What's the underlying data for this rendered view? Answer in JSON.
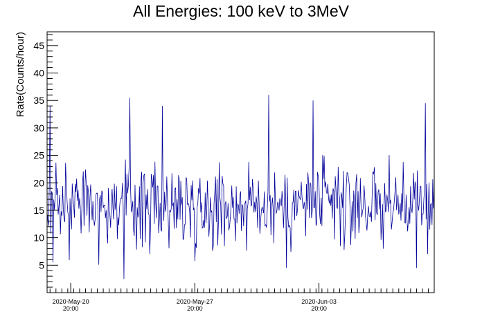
{
  "chart_data": {
    "type": "line",
    "title": "All Energies:  100 keV to 3MeV",
    "xlabel": "",
    "ylabel": "Rate(Counts/hour)",
    "ylim": [
      0,
      47.5
    ],
    "y_ticks": [
      5,
      10,
      15,
      20,
      25,
      30,
      35,
      40,
      45
    ],
    "x_ticks": [
      {
        "date": "2020-May-20",
        "time": "20:00"
      },
      {
        "date": "2020-May-27",
        "time": "20:00"
      },
      {
        "date": "2020-Jun-03",
        "time": "20:00"
      }
    ],
    "xlim": [
      "2020-May-19 12:00",
      "2020-Jun-10 08:00"
    ],
    "grid": false,
    "series_color": "#000099",
    "sampling": "hourly",
    "x_start": "2020-May-19 12:00",
    "x_end": "2020-Jun-10 08:00",
    "y_mean": 16,
    "y_min": 2.5,
    "y_max": 36,
    "peaks": [
      {
        "x": "2020-May-19 16:00",
        "y": 34
      },
      {
        "x": "2020-May-24 04:00",
        "y": 35.5
      },
      {
        "x": "2020-May-26 00:00",
        "y": 34
      },
      {
        "x": "2020-Jun-01 00:00",
        "y": 36
      },
      {
        "x": "2020-Jun-03 12:00",
        "y": 35
      },
      {
        "x": "2020-Jun-09 20:00",
        "y": 34.5
      }
    ],
    "troughs": [
      {
        "x": "2020-May-23 20:00",
        "y": 2.5
      },
      {
        "x": "2020-May-19 20:00",
        "y": 5.5
      },
      {
        "x": "2020-Jun-02 00:00",
        "y": 4.5
      },
      {
        "x": "2020-Jun-09 08:00",
        "y": 4.5
      }
    ]
  }
}
